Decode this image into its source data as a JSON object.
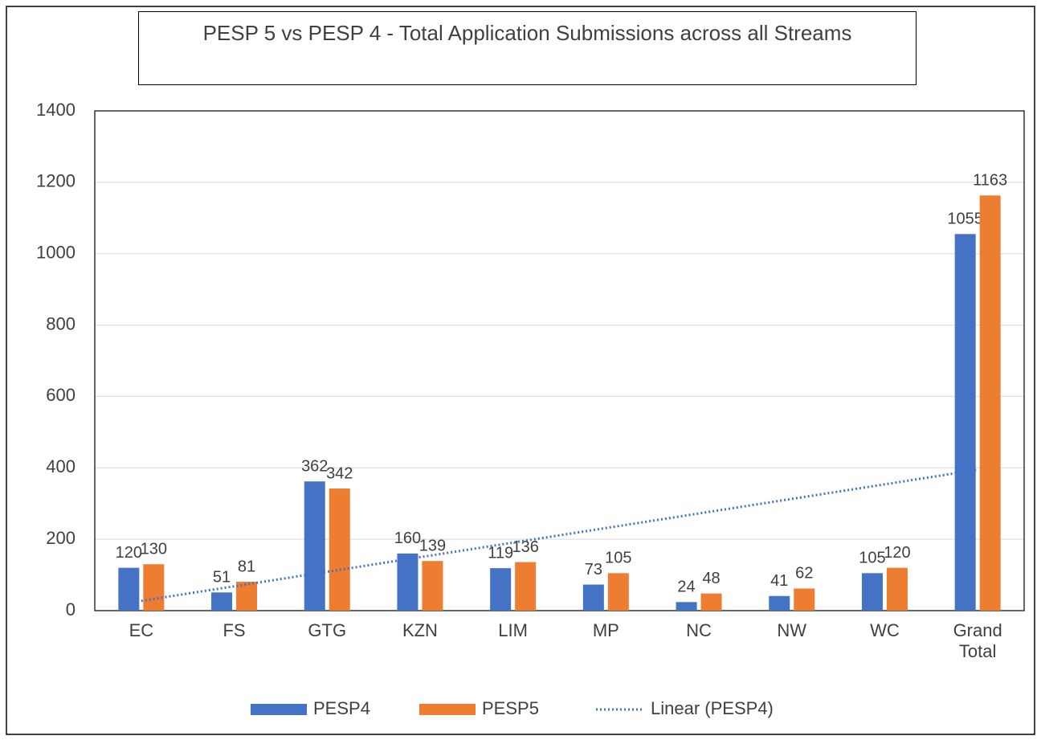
{
  "chart_data": {
    "type": "bar",
    "title": "PESP 5 vs PESP 4 - Total Application Submissions across all Streams",
    "categories": [
      "EC",
      "FS",
      "GTG",
      "KZN",
      "LIM",
      "MP",
      "NC",
      "NW",
      "WC",
      "Grand Total"
    ],
    "series": [
      {
        "name": "PESP4",
        "color": "#4472c4",
        "values": [
          120,
          51,
          362,
          160,
          119,
          73,
          24,
          41,
          105,
          1055
        ]
      },
      {
        "name": "PESP5",
        "color": "#ed7d31",
        "values": [
          130,
          81,
          342,
          139,
          136,
          105,
          48,
          62,
          120,
          1163
        ]
      }
    ],
    "trendline": {
      "name": "Linear (PESP4)",
      "type": "linear",
      "series": 0,
      "color": "#4472c4",
      "style": "dotted"
    },
    "ylim": [
      0,
      1400
    ],
    "yticks": [
      0,
      200,
      400,
      600,
      800,
      1000,
      1200,
      1400
    ],
    "grid": true,
    "legend": "bottom"
  }
}
